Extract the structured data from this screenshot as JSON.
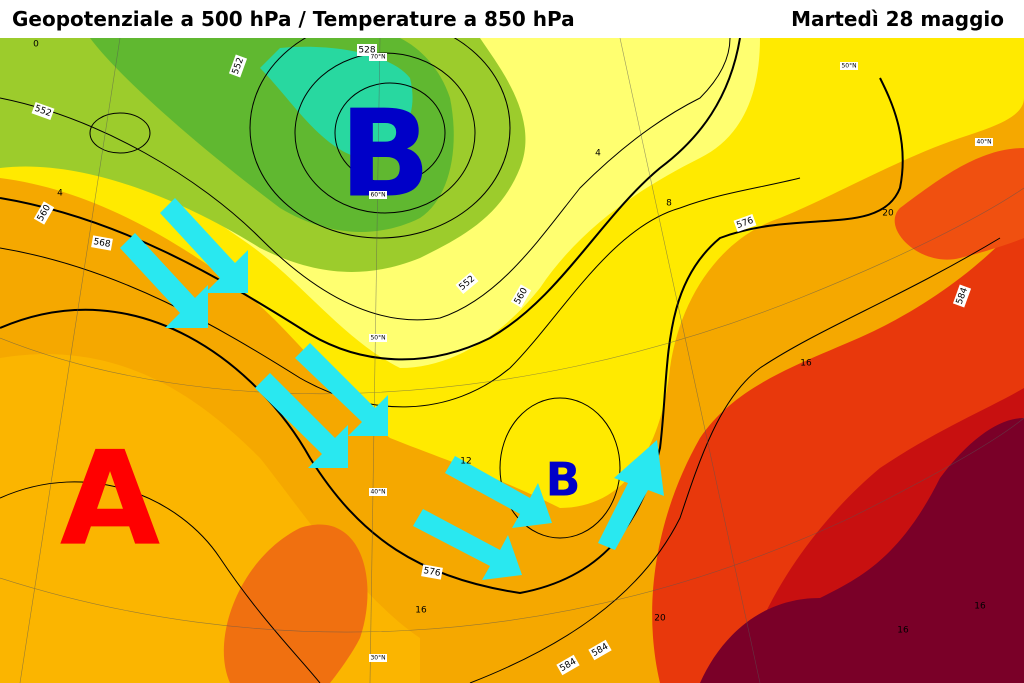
{
  "header": {
    "title": "Geopotenziale a 500 hPa / Temperature a 850 hPa",
    "date": "Martedì 28 maggio"
  },
  "pressure_centers": [
    "B",
    "A",
    "B"
  ],
  "contour_labels": [
    528,
    552,
    552,
    552,
    560,
    560,
    568,
    576,
    576,
    584,
    584,
    584
  ],
  "temperature_labels": [
    0,
    4,
    4,
    8,
    12,
    16,
    16,
    20,
    20,
    16,
    16
  ],
  "latitude_labels": [
    "70°N",
    "60°N",
    "50°N",
    "40°N",
    "30°N",
    "50°N",
    "40°N"
  ]
}
